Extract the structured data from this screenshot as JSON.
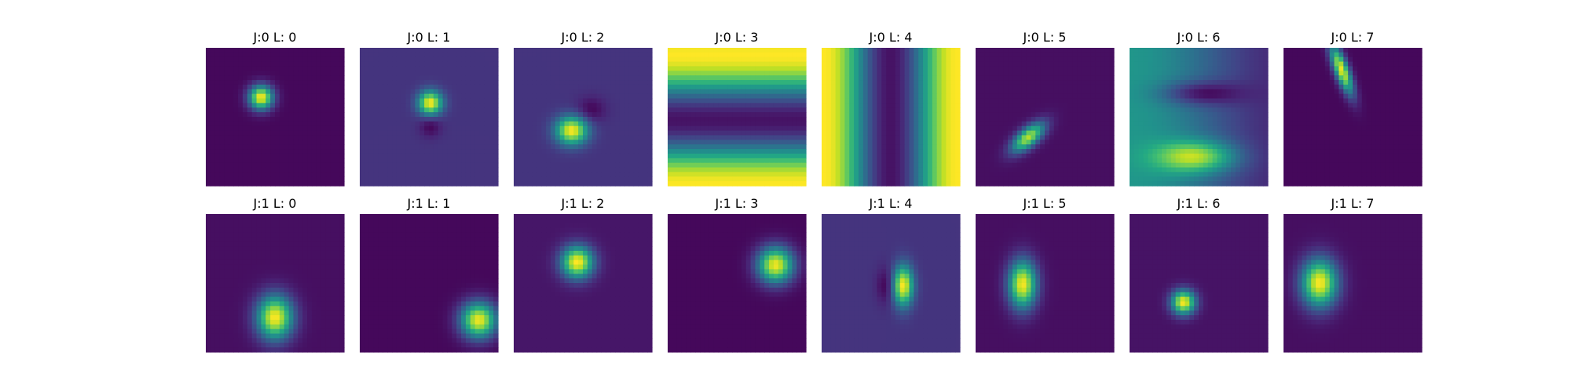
{
  "chart_data": {
    "type": "heatmap",
    "colormap": "viridis",
    "grid": false,
    "axes": "off",
    "layout": {
      "rows": 2,
      "cols": 8
    },
    "panels": [
      {
        "title": "J:0 L: 0",
        "kind": "blob",
        "background": 0.02,
        "cx": 0.4,
        "cy": 0.36,
        "sx": 0.06,
        "sy": 0.06,
        "theta": 0,
        "amp": 0.98
      },
      {
        "title": "J:0 L: 1",
        "kind": "blob",
        "background": 0.15,
        "cx": 0.51,
        "cy": 0.4,
        "sx": 0.06,
        "sy": 0.06,
        "theta": 0,
        "amp": 0.85,
        "neg_cx": 0.51,
        "neg_cy": 0.57,
        "neg_amp": 0.14
      },
      {
        "title": "J:0 L: 2",
        "kind": "blob",
        "background": 0.15,
        "cx": 0.42,
        "cy": 0.6,
        "sx": 0.08,
        "sy": 0.07,
        "theta": 0,
        "amp": 0.85,
        "neg_cx": 0.56,
        "neg_cy": 0.45,
        "neg_amp": 0.14
      },
      {
        "title": "J:0 L: 3",
        "kind": "hbands"
      },
      {
        "title": "J:0 L: 4",
        "kind": "vbands"
      },
      {
        "title": "J:0 L: 5",
        "kind": "blob",
        "background": 0.04,
        "cx": 0.38,
        "cy": 0.65,
        "sx": 0.1,
        "sy": 0.045,
        "theta": -0.7,
        "amp": 0.85
      },
      {
        "title": "J:0 L: 6",
        "kind": "field"
      },
      {
        "title": "J:0 L: 7",
        "kind": "blob",
        "background": 0.02,
        "cx": 0.42,
        "cy": 0.16,
        "sx": 0.13,
        "sy": 0.035,
        "theta": 1.2,
        "amp": 0.95
      },
      {
        "title": "J:1 L: 0",
        "kind": "blob",
        "background": 0.04,
        "cx": 0.5,
        "cy": 0.75,
        "sx": 0.09,
        "sy": 0.11,
        "theta": 0,
        "amp": 0.96
      },
      {
        "title": "J:1 L: 1",
        "kind": "blob",
        "background": 0.02,
        "cx": 0.86,
        "cy": 0.77,
        "sx": 0.09,
        "sy": 0.09,
        "theta": 0,
        "amp": 0.96
      },
      {
        "title": "J:1 L: 2",
        "kind": "blob",
        "background": 0.06,
        "cx": 0.46,
        "cy": 0.35,
        "sx": 0.08,
        "sy": 0.08,
        "theta": 0,
        "amp": 0.95
      },
      {
        "title": "J:1 L: 3",
        "kind": "blob",
        "background": 0.02,
        "cx": 0.78,
        "cy": 0.37,
        "sx": 0.09,
        "sy": 0.09,
        "theta": 0,
        "amp": 0.96
      },
      {
        "title": "J:1 L: 4",
        "kind": "blob",
        "background": 0.15,
        "cx": 0.59,
        "cy": 0.52,
        "sx": 0.05,
        "sy": 0.1,
        "theta": 0,
        "amp": 0.85,
        "neg_cx": 0.46,
        "neg_cy": 0.52,
        "neg_amp": 0.14
      },
      {
        "title": "J:1 L: 5",
        "kind": "blob",
        "background": 0.04,
        "cx": 0.34,
        "cy": 0.51,
        "sx": 0.07,
        "sy": 0.12,
        "theta": 0,
        "amp": 0.95
      },
      {
        "title": "J:1 L: 6",
        "kind": "blob",
        "background": 0.05,
        "cx": 0.39,
        "cy": 0.64,
        "sx": 0.06,
        "sy": 0.06,
        "theta": 0,
        "amp": 0.95
      },
      {
        "title": "J:1 L: 7",
        "kind": "blob",
        "background": 0.04,
        "cx": 0.26,
        "cy": 0.5,
        "sx": 0.09,
        "sy": 0.12,
        "theta": 0,
        "amp": 0.96
      }
    ]
  }
}
